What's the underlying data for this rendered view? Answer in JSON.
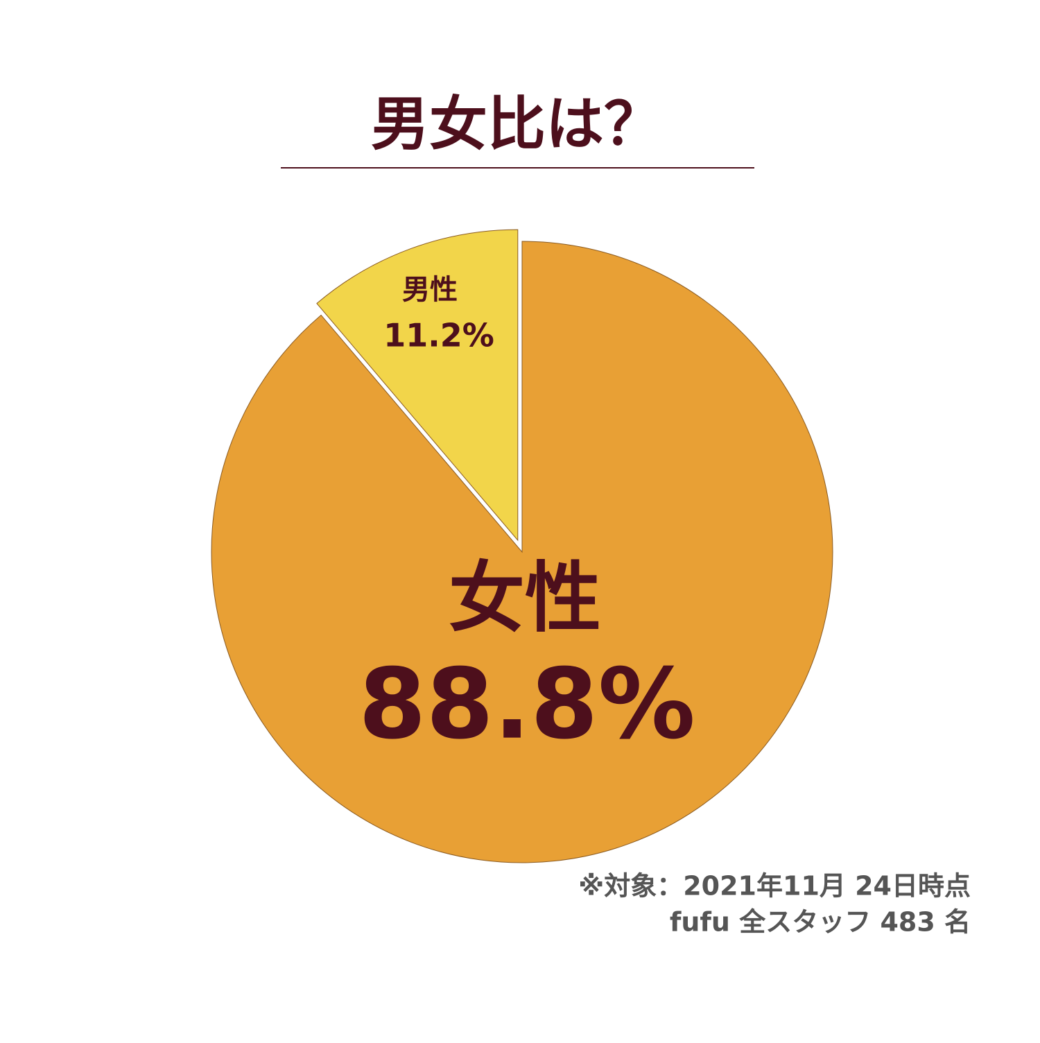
{
  "chart_data": {
    "type": "pie",
    "title": "男女比は？",
    "categories": [
      "女性",
      "男性"
    ],
    "values": [
      88.8,
      11.2
    ],
    "value_labels": [
      "88.8%",
      "11.2%"
    ],
    "colors": [
      "#E8A035",
      "#F2D54A"
    ],
    "notes": [
      "※対象：2021年11月 24日時点",
      "fufu 全スタッフ 483 名"
    ]
  }
}
